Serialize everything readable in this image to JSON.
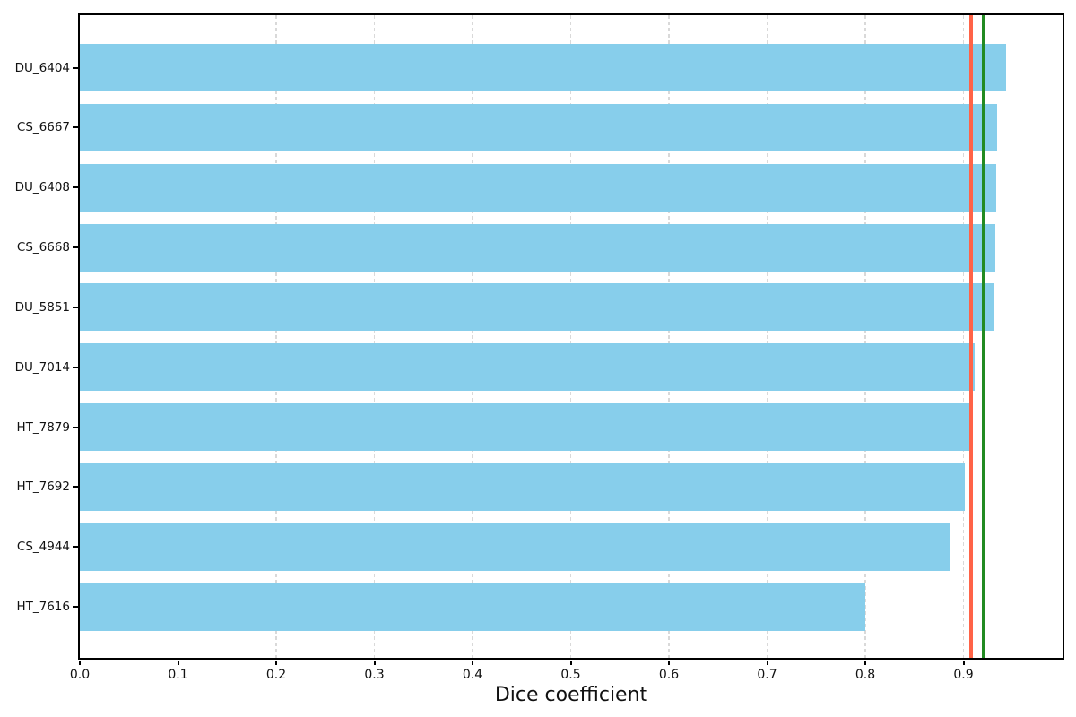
{
  "chart_data": {
    "type": "bar",
    "orientation": "horizontal",
    "title": "",
    "xlabel": "Dice coefficient",
    "ylabel": "",
    "categories": [
      "DU_6404",
      "CS_6667",
      "DU_6408",
      "CS_6668",
      "DU_5851",
      "DU_7014",
      "HT_7879",
      "HT_7692",
      "CS_4944",
      "HT_7616"
    ],
    "values": [
      0.943,
      0.934,
      0.933,
      0.932,
      0.931,
      0.911,
      0.907,
      0.901,
      0.886,
      0.8
    ],
    "bar_color": "#87ceeb",
    "xlim": [
      0.0,
      1.0
    ],
    "x_ticks": [
      0.0,
      0.1,
      0.2,
      0.3,
      0.4,
      0.5,
      0.6,
      0.7,
      0.8,
      0.9
    ],
    "grid": "vertical-dashed",
    "grid_color": "#d9d9d9",
    "legend_position": "none",
    "reference_lines": [
      {
        "name": "red-line",
        "value": 0.908,
        "color": "#ff6347"
      },
      {
        "name": "green-line",
        "value": 0.921,
        "color": "#228b22"
      }
    ]
  }
}
